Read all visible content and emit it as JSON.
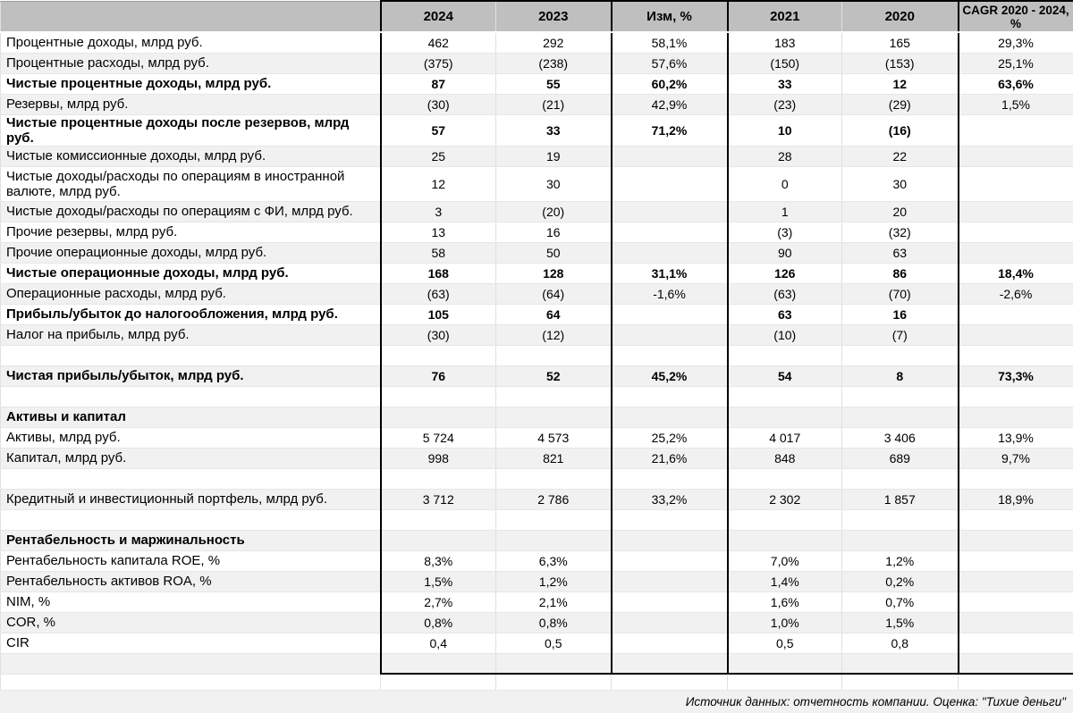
{
  "colors": {
    "header_bg": "#bfbfbf",
    "stripe_bg": "#f1f1f1",
    "footer_bg": "#f1f1f1",
    "box_border": "#000000",
    "grid_line": "#e0e0e0",
    "text": "#000000"
  },
  "table": {
    "columns": [
      "",
      "2024",
      "2023",
      "Изм, %",
      "2021",
      "2020",
      "CAGR 2020 - 2024, %"
    ],
    "rows": [
      {
        "label": "Процентные доходы, млрд руб.",
        "bold": false,
        "values": [
          "462",
          "292",
          "58,1%",
          "183",
          "165",
          "29,3%"
        ]
      },
      {
        "label": "Процентные расходы, млрд руб.",
        "bold": false,
        "values": [
          "(375)",
          "(238)",
          "57,6%",
          "(150)",
          "(153)",
          "25,1%"
        ]
      },
      {
        "label": "Чистые процентные доходы, млрд руб.",
        "bold": true,
        "values": [
          "87",
          "55",
          "60,2%",
          "33",
          "12",
          "63,6%"
        ]
      },
      {
        "label": "Резервы, млрд руб.",
        "bold": false,
        "values": [
          "(30)",
          "(21)",
          "42,9%",
          "(23)",
          "(29)",
          "1,5%"
        ]
      },
      {
        "label": "Чистые процентные доходы после резервов, млрд руб.",
        "bold": true,
        "values": [
          "57",
          "33",
          "71,2%",
          "10",
          "(16)",
          ""
        ]
      },
      {
        "label": "Чистые комиссионные доходы, млрд руб.",
        "bold": false,
        "values": [
          "25",
          "19",
          "",
          "28",
          "22",
          ""
        ]
      },
      {
        "label": "Чистые доходы/расходы по операциям в иностранной валюте, млрд руб.",
        "bold": false,
        "tall": true,
        "values": [
          "12",
          "30",
          "",
          "0",
          "30",
          ""
        ]
      },
      {
        "label": "Чистые доходы/расходы по операциям с ФИ, млрд руб.",
        "bold": false,
        "values": [
          "3",
          "(20)",
          "",
          "1",
          "20",
          ""
        ]
      },
      {
        "label": "Прочие резервы, млрд руб.",
        "bold": false,
        "values": [
          "13",
          "16",
          "",
          "(3)",
          "(32)",
          ""
        ]
      },
      {
        "label": "Прочие операционные доходы, млрд руб.",
        "bold": false,
        "values": [
          "58",
          "50",
          "",
          "90",
          "63",
          ""
        ]
      },
      {
        "label": "Чистые операционные доходы, млрд руб.",
        "bold": true,
        "values": [
          "168",
          "128",
          "31,1%",
          "126",
          "86",
          "18,4%"
        ]
      },
      {
        "label": "Операционные расходы, млрд руб.",
        "bold": false,
        "values": [
          "(63)",
          "(64)",
          "-1,6%",
          "(63)",
          "(70)",
          "-2,6%"
        ]
      },
      {
        "label": "Прибыль/убыток до налогообложения, млрд руб.",
        "bold": true,
        "values": [
          "105",
          "64",
          "",
          "63",
          "16",
          ""
        ]
      },
      {
        "label": "Налог на прибыль, млрд руб.",
        "bold": false,
        "values": [
          "(30)",
          "(12)",
          "",
          "(10)",
          "(7)",
          ""
        ]
      },
      {
        "label": "",
        "bold": false,
        "values": [
          "",
          "",
          "",
          "",
          "",
          ""
        ]
      },
      {
        "label": "Чистая прибыль/убыток, млрд руб.",
        "bold": true,
        "values": [
          "76",
          "52",
          "45,2%",
          "54",
          "8",
          "73,3%"
        ]
      },
      {
        "label": "",
        "bold": false,
        "values": [
          "",
          "",
          "",
          "",
          "",
          ""
        ]
      },
      {
        "label": "Активы и капитал",
        "bold": true,
        "values": [
          "",
          "",
          "",
          "",
          "",
          ""
        ]
      },
      {
        "label": "Активы, млрд руб.",
        "bold": false,
        "values": [
          "5 724",
          "4 573",
          "25,2%",
          "4 017",
          "3 406",
          "13,9%"
        ]
      },
      {
        "label": "Капитал, млрд руб.",
        "bold": false,
        "values": [
          "998",
          "821",
          "21,6%",
          "848",
          "689",
          "9,7%"
        ]
      },
      {
        "label": "",
        "bold": false,
        "values": [
          "",
          "",
          "",
          "",
          "",
          ""
        ]
      },
      {
        "label": "Кредитный и инвестиционный портфель, млрд руб.",
        "bold": false,
        "values": [
          "3 712",
          "2 786",
          "33,2%",
          "2 302",
          "1 857",
          "18,9%"
        ]
      },
      {
        "label": "",
        "bold": false,
        "values": [
          "",
          "",
          "",
          "",
          "",
          ""
        ]
      },
      {
        "label": "Рентабельность и маржинальность",
        "bold": true,
        "values": [
          "",
          "",
          "",
          "",
          "",
          ""
        ]
      },
      {
        "label": "Рентабельность капитала ROE, %",
        "bold": false,
        "values": [
          "8,3%",
          "6,3%",
          "",
          "7,0%",
          "1,2%",
          ""
        ]
      },
      {
        "label": "Рентабельность активов ROA, %",
        "bold": false,
        "values": [
          "1,5%",
          "1,2%",
          "",
          "1,4%",
          "0,2%",
          ""
        ]
      },
      {
        "label": "NIM, %",
        "bold": false,
        "values": [
          "2,7%",
          "2,1%",
          "",
          "1,6%",
          "0,7%",
          ""
        ]
      },
      {
        "label": "COR, %",
        "bold": false,
        "values": [
          "0,8%",
          "0,8%",
          "",
          "1,0%",
          "1,5%",
          ""
        ]
      },
      {
        "label": "CIR",
        "bold": false,
        "values": [
          "0,4",
          "0,5",
          "",
          "0,5",
          "0,8",
          ""
        ]
      },
      {
        "label": "",
        "bold": false,
        "box_bottom": true,
        "values": [
          "",
          "",
          "",
          "",
          "",
          ""
        ]
      },
      {
        "label": "",
        "bold": false,
        "outside_box": true,
        "values": [
          "",
          "",
          "",
          "",
          "",
          ""
        ]
      }
    ]
  },
  "footer": {
    "source": "Источник данных: отчетность компании. Оценка: \"Тихие деньги\""
  }
}
